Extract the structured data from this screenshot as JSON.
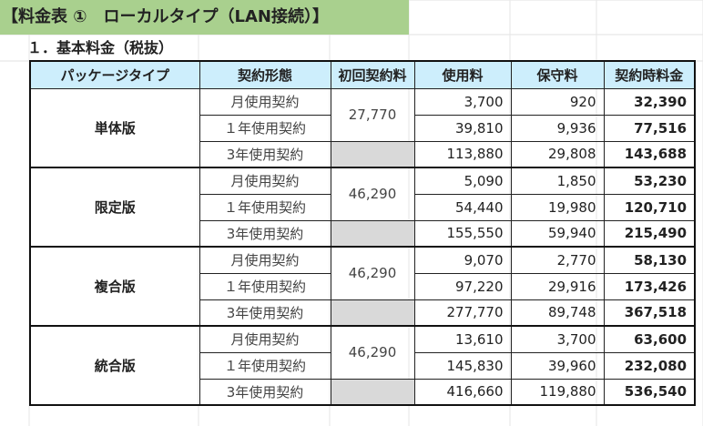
{
  "title": "【料金表 ①　ローカルタイプ（LAN接続）】",
  "subtitle": "１．基本料金（税抜）",
  "columns": [
    "パッケージタイプ",
    "契約形態",
    "初回契約料",
    "使用料",
    "保守料",
    "契約時料金"
  ],
  "groups": [
    {
      "name": "単体版",
      "initial_fee": "27,770",
      "rows": [
        {
          "type": "月使用契約",
          "usage": "3,700",
          "maintenance": "920",
          "total": "32,390"
        },
        {
          "type": "１年使用契約",
          "usage": "39,810",
          "maintenance": "9,936",
          "total": "77,516"
        },
        {
          "type": "3年使用契約",
          "usage": "113,880",
          "maintenance": "29,808",
          "total": "143,688"
        }
      ]
    },
    {
      "name": "限定版",
      "initial_fee": "46,290",
      "rows": [
        {
          "type": "月使用契約",
          "usage": "5,090",
          "maintenance": "1,850",
          "total": "53,230"
        },
        {
          "type": "１年使用契約",
          "usage": "54,440",
          "maintenance": "19,980",
          "total": "120,710"
        },
        {
          "type": "3年使用契約",
          "usage": "155,550",
          "maintenance": "59,940",
          "total": "215,490"
        }
      ]
    },
    {
      "name": "複合版",
      "initial_fee": "46,290",
      "rows": [
        {
          "type": "月使用契約",
          "usage": "9,070",
          "maintenance": "2,770",
          "total": "58,130"
        },
        {
          "type": "１年使用契約",
          "usage": "97,220",
          "maintenance": "29,916",
          "total": "173,426"
        },
        {
          "type": "3年使用契約",
          "usage": "277,770",
          "maintenance": "89,748",
          "total": "367,518"
        }
      ]
    },
    {
      "name": "統合版",
      "initial_fee": "46,290",
      "rows": [
        {
          "type": "月使用契約",
          "usage": "13,610",
          "maintenance": "3,700",
          "total": "63,600"
        },
        {
          "type": "１年使用契約",
          "usage": "145,830",
          "maintenance": "39,960",
          "total": "232,080"
        },
        {
          "type": "3年使用契約",
          "usage": "416,660",
          "maintenance": "119,880",
          "total": "536,540"
        }
      ]
    }
  ],
  "colors": {
    "title_band": "#a9d08e",
    "header_fill": "#cdeefc",
    "blank_cell": "#d9d9d9"
  }
}
